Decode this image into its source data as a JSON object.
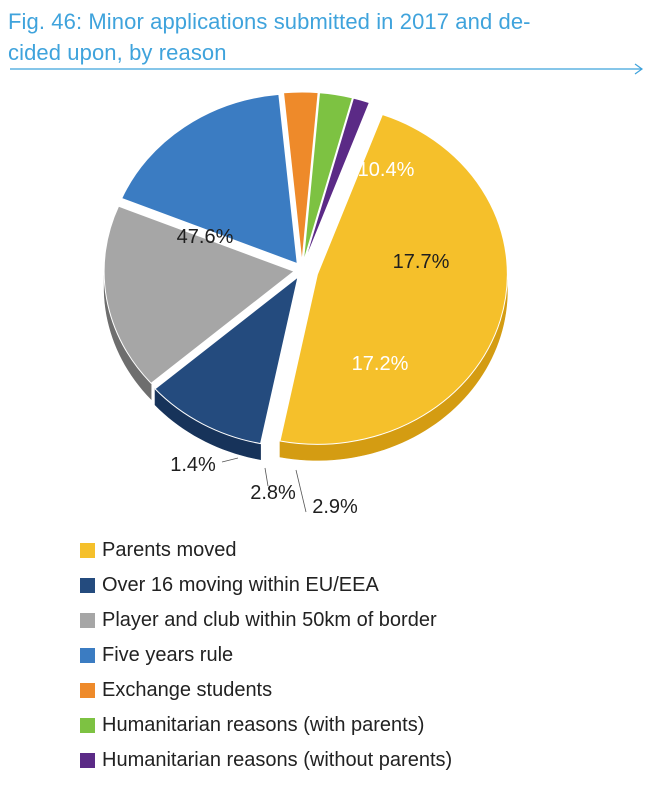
{
  "chart_data": {
    "type": "pie",
    "title_line1": "Fig. 46: Minor applications submitted in 2017 and de-",
    "title_line2": "cided upon, by reason",
    "slices": [
      {
        "label": "Parents moved",
        "value": 47.6,
        "value_label": "47.6%",
        "color": "#f5c02b",
        "side": "#d49c12"
      },
      {
        "label": "Over 16 moving within EU/EEA",
        "value": 10.4,
        "value_label": "10.4%",
        "color": "#244b7e",
        "side": "#17335a"
      },
      {
        "label": "Player and club within 50km of border",
        "value": 17.7,
        "value_label": "17.7%",
        "color": "#a6a6a6",
        "side": "#6e6e6e"
      },
      {
        "label": "Five years rule",
        "value": 17.2,
        "value_label": "17.2%",
        "color": "#3b7cc2",
        "side": "#1f4a7e"
      },
      {
        "label": "Exchange students",
        "value": 2.9,
        "value_label": "2.9%",
        "color": "#ee8a2a",
        "side": "#a8581a"
      },
      {
        "label": "Humanitarian reasons (with parents)",
        "value": 2.8,
        "value_label": "2.8%",
        "color": "#7dc242",
        "side": "#3f6a25"
      },
      {
        "label": "Humanitarian reasons (without parents)",
        "value": 1.4,
        "value_label": "1.4%",
        "color": "#5b2a86",
        "side": "#34184e"
      }
    ],
    "legend_position": "bottom"
  }
}
